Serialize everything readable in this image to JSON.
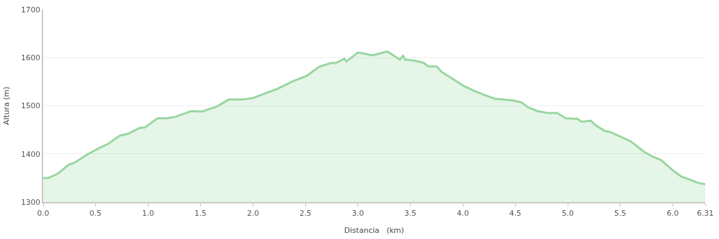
{
  "chart_data": {
    "type": "area",
    "xlabel": "Distancia   (km)",
    "ylabel": "Altura (m)",
    "x": [
      0.0,
      0.05,
      0.14,
      0.24,
      0.3,
      0.43,
      0.54,
      0.62,
      0.73,
      0.81,
      0.92,
      0.97,
      1.09,
      1.17,
      1.26,
      1.41,
      1.51,
      1.65,
      1.77,
      1.89,
      2.0,
      2.08,
      2.23,
      2.38,
      2.51,
      2.63,
      2.74,
      2.79,
      2.87,
      2.89,
      3.0,
      3.14,
      3.21,
      3.28,
      3.4,
      3.43,
      3.45,
      3.54,
      3.63,
      3.67,
      3.75,
      3.8,
      3.86,
      4.01,
      4.1,
      4.2,
      4.3,
      4.48,
      4.56,
      4.62,
      4.71,
      4.81,
      4.9,
      4.98,
      5.09,
      5.13,
      5.22,
      5.26,
      5.35,
      5.41,
      5.51,
      5.6,
      5.73,
      5.81,
      5.89,
      6.0,
      6.08,
      6.24,
      6.31
    ],
    "series": [
      {
        "color": "#98d6a0",
        "values": [
          1350,
          1350,
          1359,
          1377,
          1382,
          1400,
          1413,
          1421,
          1438,
          1442,
          1454,
          1455,
          1474,
          1474,
          1477,
          1489,
          1488,
          1498,
          1513,
          1513,
          1516,
          1523,
          1535,
          1551,
          1562,
          1581,
          1589,
          1589,
          1598,
          1592,
          1611,
          1605,
          1609,
          1613,
          1596,
          1604,
          1596,
          1594,
          1589,
          1582,
          1582,
          1570,
          1562,
          1541,
          1532,
          1523,
          1515,
          1511,
          1507,
          1497,
          1489,
          1485,
          1485,
          1474,
          1473,
          1467,
          1469,
          1460,
          1448,
          1445,
          1435,
          1426,
          1404,
          1394,
          1387,
          1366,
          1353,
          1340,
          1337
        ]
      }
    ],
    "xlim": [
      0,
      6.31
    ],
    "xticks": [
      {
        "value": 0,
        "label": "0.0"
      },
      0.5,
      {
        "value": 1,
        "label": "1.0"
      },
      1.5,
      {
        "value": 2,
        "label": "2.0"
      },
      2.5,
      {
        "value": 3,
        "label": "3.0"
      },
      3.5,
      {
        "value": 4,
        "label": "4.0"
      },
      4.5,
      {
        "value": 5,
        "label": "5.0"
      },
      5.5,
      {
        "value": 6,
        "label": "6.0"
      },
      6.31
    ],
    "ylim": [
      1300,
      1700
    ],
    "yticks": [
      1300,
      1400,
      1500,
      1600,
      1700
    ],
    "grid": "y"
  }
}
